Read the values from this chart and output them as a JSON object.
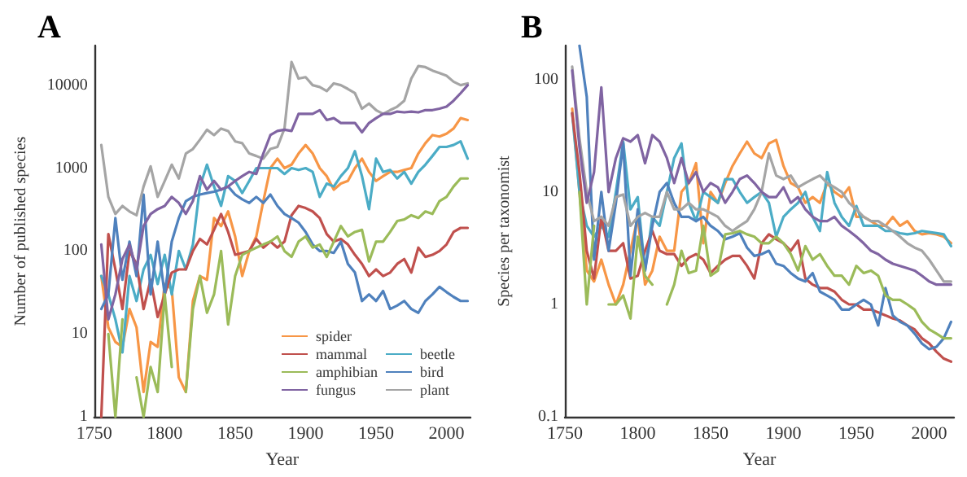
{
  "chart_data": [
    {
      "type": "line",
      "title": "A",
      "xlabel": "Year",
      "ylabel": "Number of published species",
      "log": true,
      "grid": false,
      "legend": "bottom right",
      "marker": "none",
      "line_style": "solid",
      "x": [
        1755,
        1760,
        1765,
        1770,
        1775,
        1780,
        1785,
        1790,
        1795,
        1800,
        1805,
        1810,
        1815,
        1820,
        1825,
        1830,
        1835,
        1840,
        1845,
        1850,
        1855,
        1860,
        1865,
        1870,
        1875,
        1880,
        1885,
        1890,
        1895,
        1900,
        1905,
        1910,
        1915,
        1920,
        1925,
        1930,
        1935,
        1940,
        1945,
        1950,
        1955,
        1960,
        1965,
        1970,
        1975,
        1980,
        1985,
        1990,
        1995,
        2000,
        2005,
        2010,
        2015
      ],
      "xlim": [
        1750,
        2017
      ],
      "xticks": [
        1750,
        1800,
        1850,
        1900,
        1950,
        2000
      ],
      "ylim": [
        1,
        30000
      ],
      "yticks": [
        1,
        10,
        100,
        1000,
        10000
      ],
      "series": [
        {
          "name": "spider",
          "color": "#f79646",
          "values": [
            50,
            12,
            8,
            7,
            20,
            12,
            2,
            8,
            7,
            40,
            35,
            3,
            2,
            25,
            50,
            45,
            250,
            200,
            300,
            150,
            50,
            100,
            150,
            400,
            1000,
            1300,
            1000,
            1100,
            1500,
            1900,
            1500,
            1000,
            800,
            550,
            650,
            700,
            1000,
            1300,
            900,
            700,
            800,
            900,
            900,
            950,
            1000,
            1500,
            2000,
            2500,
            2400,
            2600,
            3000,
            4000,
            3800
          ]
        },
        {
          "name": "beetle",
          "color": "#4bacc6",
          "values": [
            50,
            30,
            15,
            6,
            50,
            25,
            60,
            90,
            40,
            90,
            30,
            100,
            60,
            120,
            600,
            1100,
            600,
            350,
            800,
            700,
            500,
            700,
            1000,
            1000,
            1000,
            1000,
            850,
            1000,
            950,
            1000,
            900,
            450,
            650,
            600,
            800,
            1000,
            1600,
            800,
            320,
            1300,
            900,
            950,
            750,
            900,
            650,
            900,
            1100,
            1400,
            1800,
            1800,
            1900,
            2100,
            1300
          ]
        },
        {
          "name": "mammal",
          "color": "#c0504d",
          "values": [
            1,
            160,
            60,
            20,
            100,
            70,
            20,
            45,
            16,
            30,
            55,
            60,
            60,
            100,
            140,
            120,
            180,
            280,
            170,
            90,
            95,
            100,
            140,
            110,
            130,
            110,
            130,
            270,
            350,
            330,
            300,
            250,
            160,
            130,
            140,
            120,
            90,
            70,
            50,
            60,
            50,
            55,
            70,
            80,
            55,
            110,
            85,
            90,
            100,
            120,
            170,
            190,
            190
          ]
        },
        {
          "name": "bird",
          "color": "#4f81bd",
          "values": [
            20,
            30,
            250,
            45,
            130,
            50,
            480,
            30,
            130,
            30,
            130,
            250,
            400,
            450,
            480,
            500,
            520,
            550,
            600,
            480,
            420,
            380,
            450,
            380,
            480,
            350,
            280,
            250,
            220,
            170,
            120,
            100,
            100,
            95,
            130,
            70,
            55,
            25,
            30,
            25,
            33,
            20,
            22,
            25,
            20,
            18,
            25,
            30,
            37,
            32,
            28,
            25,
            25
          ]
        },
        {
          "name": "amphibian",
          "color": "#9bbb59",
          "values": [
            null,
            10,
            1,
            15,
            null,
            3,
            1,
            4,
            2,
            30,
            4,
            null,
            2,
            20,
            50,
            18,
            30,
            100,
            13,
            50,
            90,
            100,
            110,
            120,
            130,
            150,
            100,
            85,
            130,
            150,
            110,
            120,
            85,
            130,
            200,
            150,
            170,
            180,
            75,
            130,
            130,
            170,
            230,
            240,
            270,
            250,
            300,
            280,
            400,
            450,
            600,
            750,
            750
          ]
        },
        {
          "name": "plant",
          "color": "#a5a5a5",
          "values": [
            1900,
            450,
            280,
            350,
            300,
            270,
            600,
            1050,
            450,
            700,
            1100,
            750,
            1500,
            1700,
            2200,
            2900,
            2500,
            3000,
            2800,
            2100,
            2000,
            1500,
            1400,
            1300,
            1700,
            1800,
            3000,
            19000,
            12000,
            12500,
            10000,
            9500,
            8500,
            10500,
            10000,
            9000,
            8000,
            5200,
            6000,
            5000,
            4500,
            5000,
            5500,
            6500,
            12000,
            17000,
            16500,
            15000,
            14000,
            13000,
            11000,
            10000,
            10500
          ]
        },
        {
          "name": "fungus",
          "color": "#8064a2",
          "values": [
            120,
            15,
            30,
            80,
            120,
            60,
            200,
            280,
            320,
            350,
            450,
            380,
            280,
            400,
            800,
            550,
            700,
            550,
            600,
            700,
            800,
            900,
            850,
            1500,
            2500,
            2800,
            2900,
            2800,
            4500,
            4500,
            4500,
            5000,
            3800,
            4000,
            3500,
            3500,
            3500,
            2700,
            3500,
            4000,
            4500,
            4500,
            4800,
            4700,
            4800,
            4700,
            5000,
            5000,
            5200,
            5500,
            6500,
            8000,
            10000
          ]
        }
      ]
    },
    {
      "type": "line",
      "title": "B",
      "xlabel": "Year",
      "ylabel": "Species per taxonomist",
      "log": true,
      "grid": false,
      "marker": "none",
      "line_style": "solid",
      "x": [
        1755,
        1760,
        1765,
        1770,
        1775,
        1780,
        1785,
        1790,
        1795,
        1800,
        1805,
        1810,
        1815,
        1820,
        1825,
        1830,
        1835,
        1840,
        1845,
        1850,
        1855,
        1860,
        1865,
        1870,
        1875,
        1880,
        1885,
        1890,
        1895,
        1900,
        1905,
        1910,
        1915,
        1920,
        1925,
        1930,
        1935,
        1940,
        1945,
        1950,
        1955,
        1960,
        1965,
        1970,
        1975,
        1980,
        1985,
        1990,
        1995,
        2000,
        2005,
        2010,
        2015
      ],
      "xlim": [
        1750,
        2017
      ],
      "xticks": [
        1750,
        1800,
        1850,
        1900,
        1950,
        2000
      ],
      "ylim": [
        0.1,
        200
      ],
      "yticks": [
        0.1,
        1,
        10,
        100
      ],
      "series": [
        {
          "color": "#f79646",
          "values": [
            55,
            10,
            2,
            1.6,
            2.5,
            1.5,
            1,
            1.5,
            3,
            6,
            1.5,
            2,
            4,
            3,
            3,
            10,
            12,
            18,
            3.5,
            10,
            8,
            12,
            17,
            22,
            28,
            22,
            20,
            27,
            29,
            17,
            12,
            11,
            8,
            9,
            8,
            12,
            10,
            9,
            11,
            6,
            6,
            5.5,
            5,
            5,
            6,
            5,
            5.5,
            4.5,
            4.2,
            4.3,
            4.2,
            4,
            3.5
          ]
        },
        {
          "color": "#4bacc6",
          "values": [
            50,
            10,
            5,
            4,
            5,
            4,
            10,
            28,
            7,
            9,
            2,
            6,
            5,
            10,
            20,
            27,
            8,
            5.5,
            10,
            9,
            8,
            13,
            13,
            10,
            8,
            9,
            10,
            8,
            4,
            6,
            7,
            8,
            10,
            6,
            4.5,
            15,
            8,
            6,
            5,
            7.5,
            5,
            5,
            5,
            4.5,
            4.5,
            4.3,
            4.2,
            4.3,
            4.5,
            4.4,
            4.3,
            4.2,
            3.3
          ]
        },
        {
          "color": "#c0504d",
          "values": [
            50,
            15,
            3,
            1.7,
            6,
            3,
            3,
            3.5,
            1.7,
            1.8,
            3,
            4.5,
            3,
            2.8,
            2.8,
            2.2,
            2.6,
            2.8,
            2.5,
            1.9,
            2.2,
            2.5,
            2.7,
            2.7,
            2.2,
            1.7,
            3.5,
            4.2,
            3.8,
            3.5,
            3,
            3.7,
            1.7,
            1.5,
            1.4,
            1.4,
            1.3,
            1.1,
            1,
            1,
            0.9,
            0.9,
            0.85,
            0.8,
            0.75,
            0.72,
            0.65,
            0.6,
            0.5,
            0.45,
            0.38,
            0.33,
            0.31
          ]
        },
        {
          "color": "#4f81bd",
          "values": [
            null,
            200,
            70,
            2.5,
            10,
            3,
            8,
            27,
            1.8,
            7,
            2,
            5,
            10,
            12,
            8,
            6,
            6,
            5.5,
            6,
            5,
            4.5,
            3.8,
            4,
            4.3,
            3.2,
            2.7,
            2.8,
            3,
            2.3,
            2.2,
            1.9,
            1.7,
            1.6,
            1.9,
            1.3,
            1.2,
            1.1,
            0.9,
            0.9,
            1,
            1.1,
            1,
            0.65,
            1.4,
            0.8,
            0.7,
            0.65,
            0.55,
            0.45,
            0.4,
            0.42,
            0.5,
            0.7
          ]
        },
        {
          "color": "#9bbb59",
          "values": [
            null,
            10,
            1,
            5,
            null,
            1,
            1,
            1.2,
            0.75,
            4,
            1.8,
            1.5,
            null,
            1,
            1.5,
            3,
            1.9,
            2,
            5,
            1.8,
            2,
            4.2,
            4.3,
            4.5,
            4.2,
            4,
            3.5,
            3.5,
            4,
            3.5,
            2.8,
            2,
            3.3,
            2.5,
            2.8,
            2.2,
            1.8,
            1.8,
            1.5,
            2.2,
            1.9,
            2,
            1.8,
            1.2,
            1.1,
            1.1,
            1,
            0.9,
            0.7,
            0.6,
            0.55,
            0.5,
            0.5
          ]
        },
        {
          "color": "#a5a5a5",
          "values": [
            130,
            30,
            10,
            5.5,
            6,
            5,
            9,
            9.5,
            5,
            6,
            6.5,
            6,
            6,
            10,
            7,
            7,
            8,
            7,
            7,
            6.5,
            6,
            5,
            4.5,
            5,
            5.5,
            7,
            10,
            22,
            14,
            13,
            14,
            11,
            12,
            13,
            14,
            12,
            11,
            10,
            8,
            7,
            6,
            5.5,
            5.5,
            5,
            4.5,
            4,
            3.5,
            3.2,
            3,
            2.5,
            2,
            1.6,
            1.6
          ]
        },
        {
          "color": "#8064a2",
          "values": [
            120,
            25,
            8,
            15,
            85,
            10,
            20,
            30,
            28,
            32,
            18,
            32,
            28,
            20,
            12,
            20,
            12,
            15,
            10,
            12,
            11,
            8,
            10,
            13,
            14,
            12,
            10,
            9,
            9,
            11,
            8,
            9,
            7,
            6,
            5.5,
            5.5,
            6,
            5,
            4.5,
            4,
            3.5,
            3,
            2.8,
            2.5,
            2.3,
            2.2,
            2.1,
            2,
            1.8,
            1.6,
            1.5,
            1.5,
            1.5
          ]
        }
      ]
    }
  ]
}
